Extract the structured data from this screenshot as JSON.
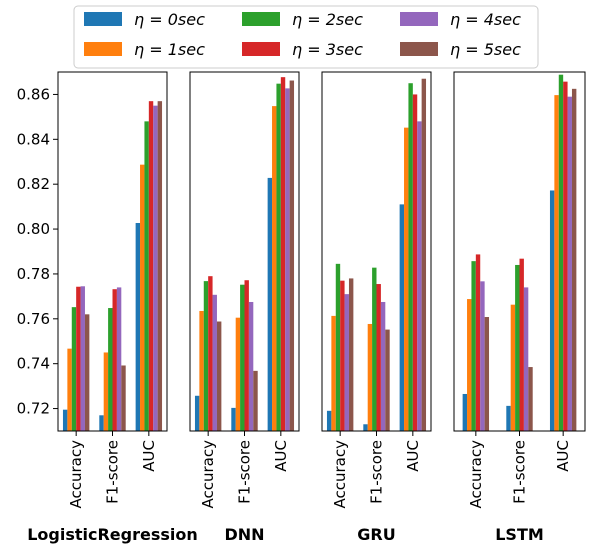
{
  "chart_data": {
    "type": "bar",
    "ylim": [
      0.71,
      0.87
    ],
    "yticks": [
      0.72,
      0.74,
      0.76,
      0.78,
      0.8,
      0.82,
      0.84,
      0.86
    ],
    "ytick_labels": [
      "0.72",
      "0.74",
      "0.76",
      "0.78",
      "0.80",
      "0.82",
      "0.84",
      "0.86"
    ],
    "categories": [
      "Accuracy",
      "F1-score",
      "AUC"
    ],
    "series_names": [
      "η = 0sec",
      "η = 1sec",
      "η = 2sec",
      "η = 3sec",
      "η = 4sec",
      "η = 5sec"
    ],
    "series_colors": [
      "#1f77b4",
      "#ff7f0e",
      "#2ca02c",
      "#d62728",
      "#9467bd",
      "#8c564b"
    ],
    "legend_position": "top-center",
    "panels": [
      {
        "title": "LogisticRegression",
        "values": [
          [
            0.7195,
            0.7467,
            0.7652,
            0.7743,
            0.7745,
            0.762
          ],
          [
            0.717,
            0.745,
            0.7648,
            0.7732,
            0.774,
            0.7392
          ],
          [
            0.8027,
            0.8287,
            0.848,
            0.857,
            0.855,
            0.857
          ]
        ]
      },
      {
        "title": "DNN",
        "values": [
          [
            0.7257,
            0.7635,
            0.7768,
            0.779,
            0.7707,
            0.7588
          ],
          [
            0.7203,
            0.7605,
            0.7752,
            0.7772,
            0.7675,
            0.7368
          ],
          [
            0.8228,
            0.8548,
            0.8648,
            0.8677,
            0.8627,
            0.8662
          ]
        ]
      },
      {
        "title": "GRU",
        "values": [
          [
            0.719,
            0.7613,
            0.7845,
            0.777,
            0.771,
            0.778
          ],
          [
            0.713,
            0.7577,
            0.7828,
            0.7755,
            0.7675,
            0.7552
          ],
          [
            0.811,
            0.8452,
            0.865,
            0.86,
            0.848,
            0.867
          ]
        ]
      },
      {
        "title": "LSTM",
        "values": [
          [
            0.7265,
            0.7688,
            0.7857,
            0.7887,
            0.7767,
            0.7608
          ],
          [
            0.7212,
            0.7663,
            0.784,
            0.7868,
            0.774,
            0.7385
          ],
          [
            0.8172,
            0.8597,
            0.8688,
            0.8657,
            0.859,
            0.8625
          ]
        ]
      }
    ]
  }
}
